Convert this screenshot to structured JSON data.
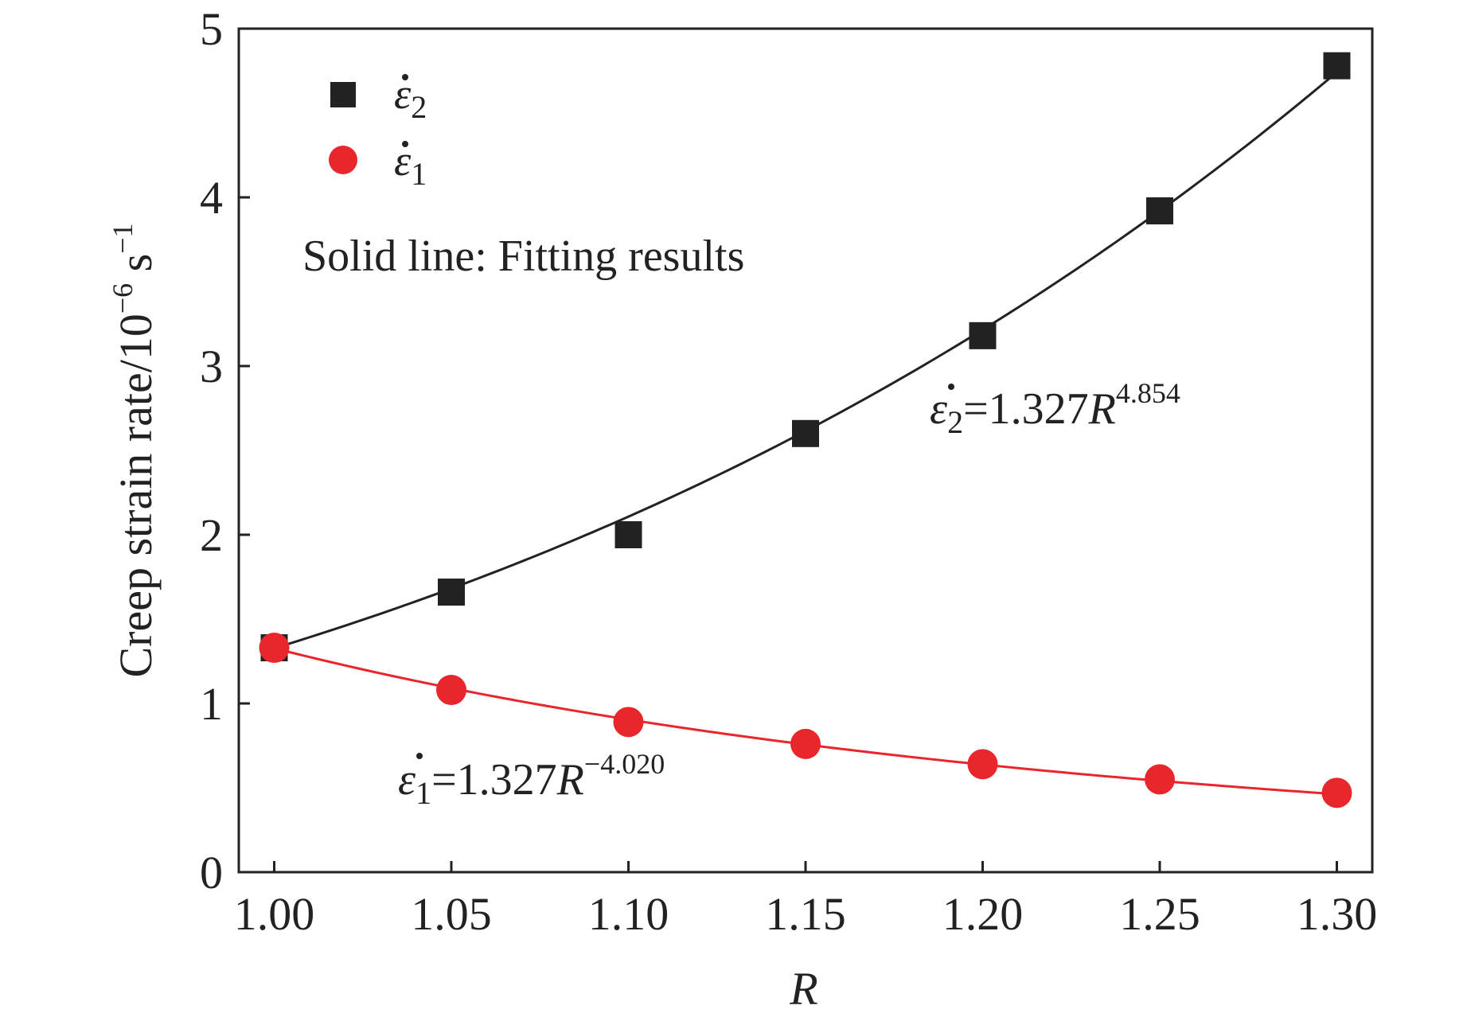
{
  "chart_data": {
    "type": "scatter",
    "xlabel": "R",
    "ylabel_base": "Creep strain rate/10",
    "ylabel_exp1": "−6",
    "ylabel_unit": " s",
    "ylabel_exp2": "−1",
    "xlim": [
      0.99,
      1.31
    ],
    "ylim": [
      0,
      5
    ],
    "x_ticks": [
      1.0,
      1.05,
      1.1,
      1.15,
      1.2,
      1.25,
      1.3
    ],
    "x_tick_labels": [
      "1.00",
      "1.05",
      "1.10",
      "1.15",
      "1.20",
      "1.25",
      "1.30"
    ],
    "y_ticks": [
      0,
      1,
      2,
      3,
      4,
      5
    ],
    "y_tick_labels": [
      "0",
      "1",
      "2",
      "3",
      "4",
      "5"
    ],
    "grid": false,
    "legend_position": "top-left",
    "series": [
      {
        "symbol": "ε",
        "subscript": "2",
        "marker": "square",
        "color": "#222222",
        "x": [
          1.0,
          1.05,
          1.1,
          1.15,
          1.2,
          1.25,
          1.3
        ],
        "y": [
          1.33,
          1.66,
          2.0,
          2.6,
          3.18,
          3.92,
          4.78
        ],
        "fit": {
          "coef": 1.327,
          "exp": 4.854
        }
      },
      {
        "symbol": "ε",
        "subscript": "1",
        "marker": "circle",
        "color": "#e8262b",
        "x": [
          1.0,
          1.05,
          1.1,
          1.15,
          1.2,
          1.25,
          1.3
        ],
        "y": [
          1.33,
          1.08,
          0.89,
          0.76,
          0.64,
          0.55,
          0.47
        ],
        "fit": {
          "coef": 1.327,
          "exp": -4.02
        }
      }
    ],
    "annotations": {
      "fit_note": "Solid line: Fitting results",
      "eq2": {
        "lhs_sub": "2",
        "text": "=1.327",
        "var": "R",
        "exp": "4.854"
      },
      "eq1": {
        "lhs_sub": "1",
        "text": "=1.327",
        "var": "R",
        "exp": "−4.020"
      }
    }
  }
}
